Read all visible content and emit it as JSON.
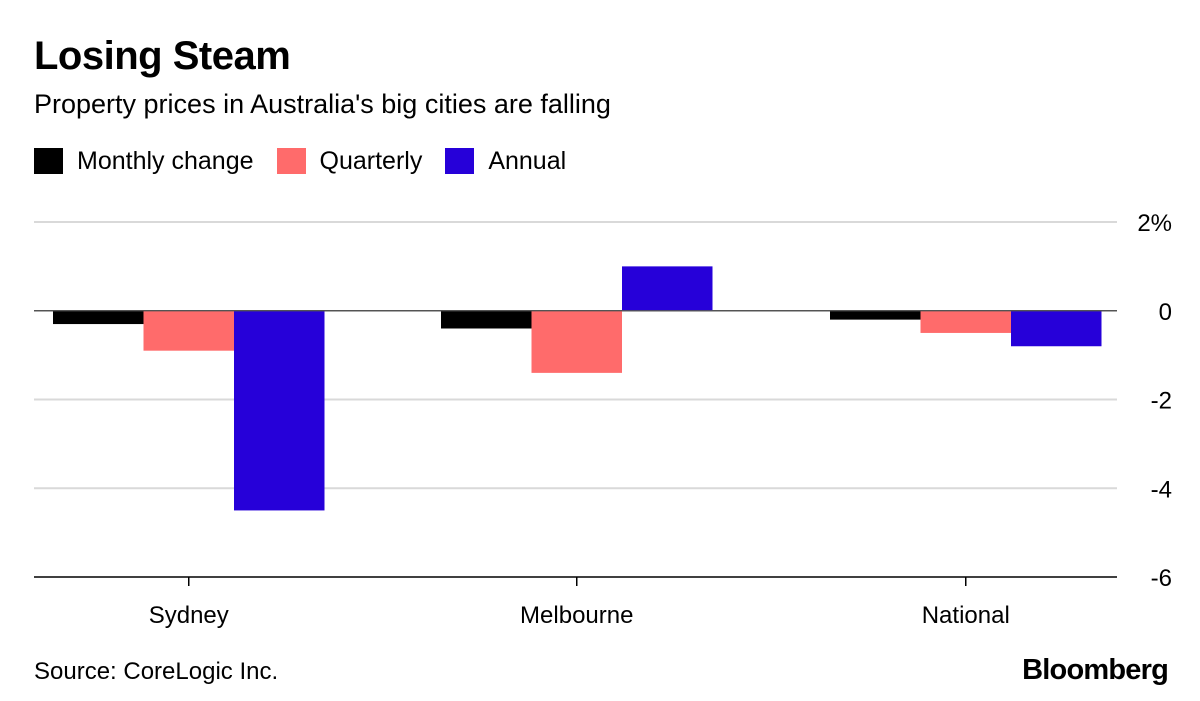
{
  "header": {
    "title": "Losing Steam",
    "subtitle": "Property prices in Australia's big cities are falling"
  },
  "footer": {
    "source": "Source: CoreLogic Inc.",
    "brand": "Bloomberg"
  },
  "chart_data": {
    "type": "bar",
    "title": "Losing Steam",
    "subtitle": "Property prices in Australia's big cities are falling",
    "categories": [
      "Sydney",
      "Melbourne",
      "National"
    ],
    "series": [
      {
        "name": "Monthly change",
        "color": "#000000",
        "values": [
          -0.3,
          -0.4,
          -0.2
        ]
      },
      {
        "name": "Quarterly",
        "color": "#ff6b6b",
        "values": [
          -0.9,
          -1.4,
          -0.5
        ]
      },
      {
        "name": "Annual",
        "color": "#2600d9",
        "values": [
          -4.5,
          1.0,
          -0.8
        ]
      }
    ],
    "ylim": [
      -6,
      2
    ],
    "yticks": [
      2,
      0,
      -2,
      -4,
      -6
    ],
    "ytick_labels": [
      "2%",
      "0",
      "-2",
      "-4",
      "-6"
    ],
    "xlabel": "",
    "ylabel": "",
    "grid": true,
    "legend_position": "top-left",
    "axis_position": "right"
  }
}
